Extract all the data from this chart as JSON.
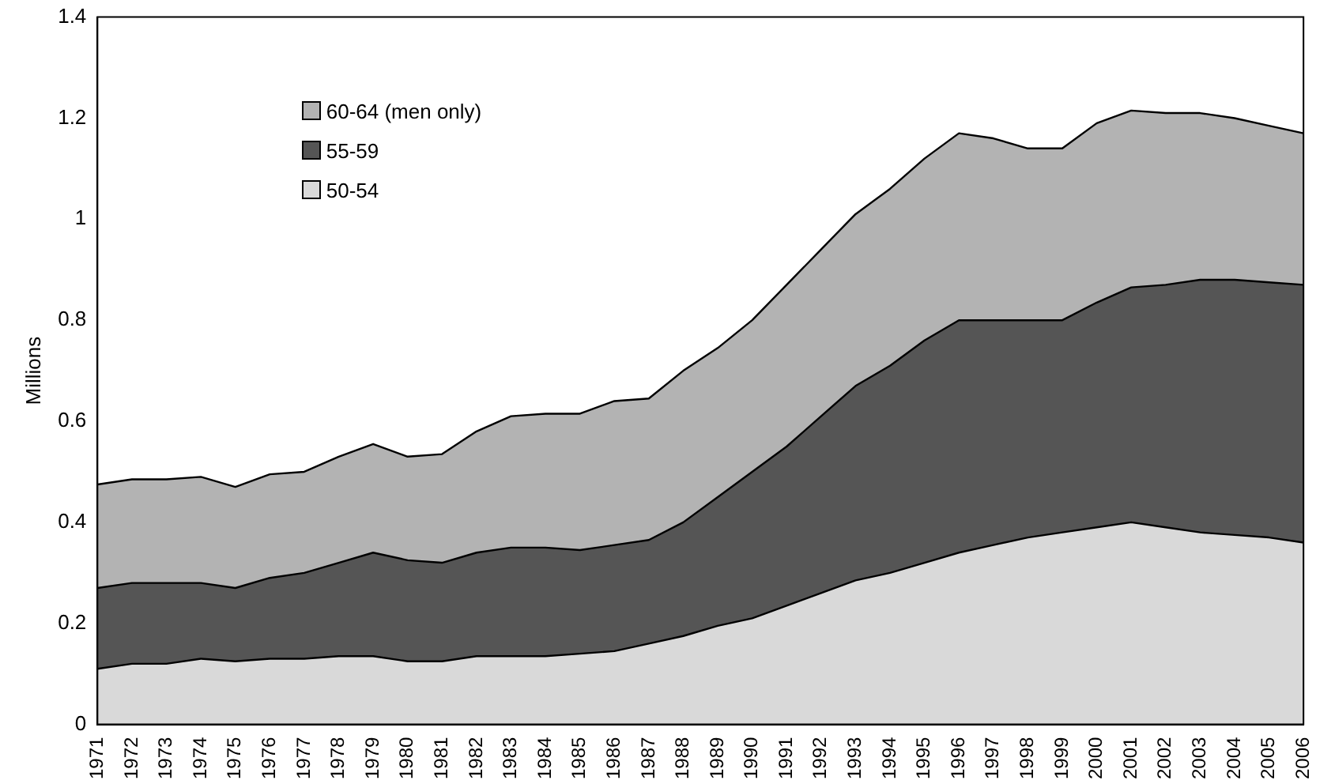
{
  "chart_data": {
    "type": "area",
    "stacked": true,
    "ylabel": "Millions",
    "categories": [
      "1971",
      "1972",
      "1973",
      "1974",
      "1975",
      "1976",
      "1977",
      "1978",
      "1979",
      "1980",
      "1981",
      "1982",
      "1983",
      "1984",
      "1985",
      "1986",
      "1987",
      "1988",
      "1989",
      "1990",
      "1991",
      "1992",
      "1993",
      "1994",
      "1995",
      "1996",
      "1997",
      "1998",
      "1999",
      "2000",
      "2001",
      "2002",
      "2003",
      "2004",
      "2005",
      "2006"
    ],
    "series": [
      {
        "name": "50-54",
        "color": "#d9d9d9",
        "values": [
          0.11,
          0.12,
          0.12,
          0.13,
          0.125,
          0.13,
          0.13,
          0.135,
          0.135,
          0.125,
          0.125,
          0.135,
          0.135,
          0.135,
          0.14,
          0.145,
          0.16,
          0.175,
          0.195,
          0.21,
          0.235,
          0.26,
          0.285,
          0.3,
          0.32,
          0.34,
          0.355,
          0.37,
          0.38,
          0.39,
          0.4,
          0.39,
          0.38,
          0.375,
          0.37,
          0.36
        ]
      },
      {
        "name": "55-59",
        "color": "#555555",
        "values": [
          0.16,
          0.16,
          0.16,
          0.15,
          0.145,
          0.16,
          0.17,
          0.185,
          0.205,
          0.2,
          0.195,
          0.205,
          0.215,
          0.215,
          0.205,
          0.21,
          0.205,
          0.225,
          0.255,
          0.29,
          0.315,
          0.35,
          0.385,
          0.41,
          0.44,
          0.46,
          0.445,
          0.43,
          0.42,
          0.445,
          0.465,
          0.48,
          0.5,
          0.505,
          0.505,
          0.51
        ]
      },
      {
        "name": "60-64 (men only)",
        "color": "#b3b3b3",
        "values": [
          0.205,
          0.205,
          0.205,
          0.21,
          0.2,
          0.205,
          0.2,
          0.21,
          0.215,
          0.205,
          0.215,
          0.24,
          0.26,
          0.265,
          0.27,
          0.285,
          0.28,
          0.3,
          0.295,
          0.3,
          0.32,
          0.33,
          0.34,
          0.35,
          0.36,
          0.37,
          0.36,
          0.34,
          0.34,
          0.355,
          0.35,
          0.34,
          0.33,
          0.32,
          0.31,
          0.3
        ]
      }
    ],
    "ylim": [
      0,
      1.4
    ],
    "yticks": [
      0,
      0.2,
      0.4,
      0.6,
      0.8,
      1,
      1.2,
      1.4
    ],
    "grid": false,
    "legend": "top left"
  }
}
